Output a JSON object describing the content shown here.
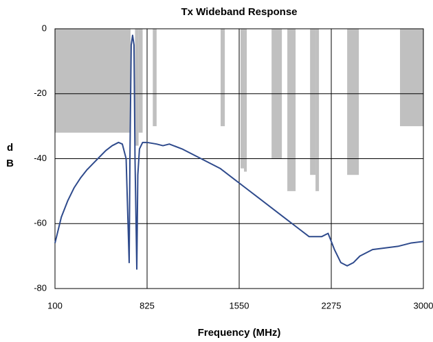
{
  "chart_data": {
    "type": "line",
    "title": "Tx Wideband Response",
    "xlabel": "Frequency (MHz)",
    "ylabel": "dB",
    "xlim": [
      100,
      3000
    ],
    "ylim": [
      -80,
      0
    ],
    "xticks": [
      100,
      825,
      1550,
      2275,
      3000
    ],
    "yticks": [
      0,
      -20,
      -40,
      -60,
      -80
    ],
    "grid": true,
    "mask_color": "#c0c0c0",
    "mask": [
      {
        "x": [
          100,
          695
        ],
        "value": -32
      },
      {
        "x": [
          730,
          758
        ],
        "value": -36
      },
      {
        "x": [
          758,
          790
        ],
        "value": -32
      },
      {
        "x": [
          870,
          900
        ],
        "value": -30
      },
      {
        "x": [
          1404,
          1437
        ],
        "value": -30
      },
      {
        "x": [
          1561,
          1588
        ],
        "value": -43
      },
      {
        "x": [
          1588,
          1610
        ],
        "value": -44
      },
      {
        "x": [
          1805,
          1886
        ],
        "value": -40
      },
      {
        "x": [
          1929,
          1994
        ],
        "value": -50
      },
      {
        "x": [
          2108,
          2151
        ],
        "value": -45
      },
      {
        "x": [
          2151,
          2178
        ],
        "value": -50
      },
      {
        "x": [
          2400,
          2492
        ],
        "value": -45
      },
      {
        "x": [
          2816,
          3000
        ],
        "value": -30
      }
    ],
    "series": [
      {
        "color": "#2e4a8c",
        "x": [
          100,
          150,
          200,
          250,
          300,
          350,
          400,
          450,
          500,
          550,
          600,
          630,
          660,
          675,
          684,
          690,
          700,
          711,
          722,
          730,
          744,
          752,
          765,
          790,
          825,
          900,
          950,
          1000,
          1100,
          1200,
          1300,
          1400,
          1500,
          1600,
          1700,
          1800,
          1900,
          2000,
          2100,
          2200,
          2250,
          2300,
          2350,
          2400,
          2450,
          2500,
          2600,
          2700,
          2800,
          2900,
          3000
        ],
        "values": [
          -66,
          -58,
          -53,
          -49,
          -46,
          -43.5,
          -41.5,
          -39.5,
          -37.5,
          -36,
          -35,
          -35.5,
          -40,
          -60,
          -72,
          -40,
          -5,
          -2,
          -5,
          -40,
          -74,
          -45,
          -37,
          -35,
          -35,
          -35.5,
          -36,
          -35.5,
          -37,
          -39,
          -41,
          -43,
          -46,
          -49,
          -52,
          -55,
          -58,
          -61,
          -64,
          -64,
          -63,
          -68,
          -72,
          -73,
          -72,
          -70,
          -68,
          -67.5,
          -67,
          -66,
          -65.5
        ]
      }
    ]
  }
}
